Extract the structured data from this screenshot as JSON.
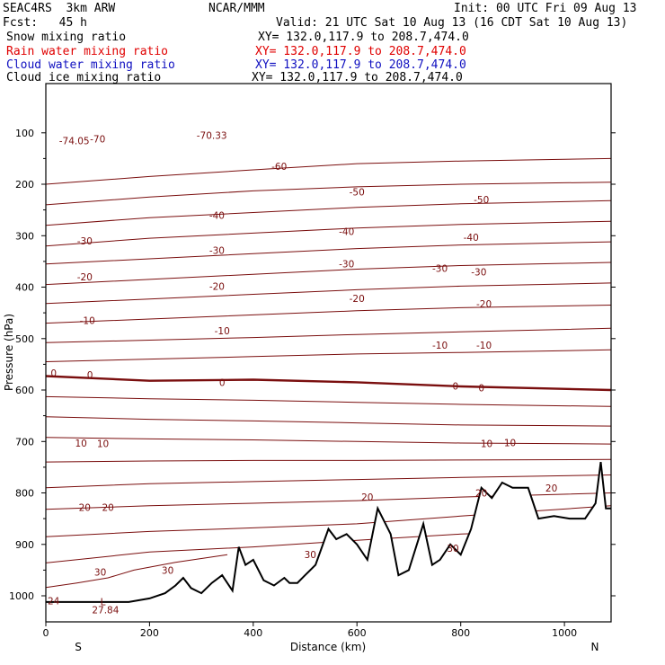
{
  "header": {
    "model": "SEAC4RS  3km ARW",
    "forecast": "Fcst:   45 h",
    "org": "NCAR/MMM",
    "init": "Init: 00 UTC Fri 09 Aug 13",
    "valid": "Valid: 21 UTC Sat 10 Aug 13 (16 CDT Sat 10 Aug 13)"
  },
  "fields": [
    {
      "name": "Snow mixing ratio",
      "xy": "XY= 132.0,117.9 to 208.7,474.0",
      "color": "#000000"
    },
    {
      "name": "Rain water mixing ratio",
      "xy": "XY= 132.0,117.9 to 208.7,474.0",
      "color": "#e00000"
    },
    {
      "name": "Cloud water mixing ratio",
      "xy": "XY= 132.0,117.9 to 208.7,474.0",
      "color": "#1010c0"
    },
    {
      "name": "Cloud ice mixing ratio",
      "xy": "XY= 132.0,117.9 to 208.7,474.0",
      "color": "#000000"
    }
  ],
  "chart_data": {
    "type": "line",
    "xlabel": "Distance (km)",
    "ylabel": "Pressure (hPa)",
    "xlim": [
      0,
      1090
    ],
    "ylim": [
      1050,
      100
    ],
    "x_ticks": [
      0,
      200,
      400,
      600,
      800,
      1000
    ],
    "y_ticks": [
      100,
      200,
      300,
      400,
      500,
      600,
      700,
      800,
      900,
      1000
    ],
    "y_scale": "linear, pressure decreasing upward",
    "x_end_labels": {
      "left": "S",
      "right": "N"
    },
    "contour_color": "#7a0e0e",
    "zero_isotherm_highlighted": true,
    "contours": [
      {
        "x": [
          0,
          200,
          400,
          600,
          800,
          1090
        ],
        "y": [
          200,
          185,
          172,
          160,
          155,
          150
        ]
      },
      {
        "x": [
          0,
          200,
          400,
          600,
          800,
          1090
        ],
        "y": [
          240,
          225,
          213,
          205,
          200,
          196
        ]
      },
      {
        "x": [
          0,
          200,
          400,
          600,
          800,
          1090
        ],
        "y": [
          280,
          265,
          255,
          245,
          238,
          232
        ]
      },
      {
        "x": [
          0,
          200,
          400,
          600,
          800,
          1090
        ],
        "y": [
          320,
          305,
          295,
          285,
          278,
          272
        ]
      },
      {
        "x": [
          0,
          200,
          400,
          600,
          800,
          1090
        ],
        "y": [
          355,
          345,
          335,
          325,
          318,
          312
        ]
      },
      {
        "x": [
          0,
          200,
          400,
          600,
          800,
          1090
        ],
        "y": [
          395,
          385,
          375,
          365,
          358,
          352
        ]
      },
      {
        "x": [
          0,
          200,
          400,
          600,
          800,
          1090
        ],
        "y": [
          432,
          423,
          414,
          405,
          398,
          392
        ]
      },
      {
        "x": [
          0,
          200,
          400,
          600,
          800,
          1090
        ],
        "y": [
          470,
          462,
          454,
          446,
          440,
          435
        ]
      },
      {
        "x": [
          0,
          200,
          400,
          600,
          800,
          1090
        ],
        "y": [
          508,
          503,
          498,
          492,
          487,
          480
        ]
      },
      {
        "x": [
          0,
          200,
          400,
          600,
          800,
          1090
        ],
        "y": [
          545,
          540,
          535,
          530,
          527,
          522
        ]
      },
      {
        "x": [
          0,
          200,
          400,
          600,
          800,
          1090
        ],
        "y": [
          573,
          582,
          580,
          585,
          593,
          600
        ],
        "emphasis": true
      },
      {
        "x": [
          0,
          200,
          400,
          600,
          800,
          1090
        ],
        "y": [
          613,
          617,
          620,
          624,
          628,
          632
        ]
      },
      {
        "x": [
          0,
          200,
          400,
          600,
          800,
          1090
        ],
        "y": [
          652,
          657,
          660,
          664,
          668,
          670
        ]
      },
      {
        "x": [
          0,
          200,
          400,
          600,
          800,
          1090
        ],
        "y": [
          692,
          695,
          697,
          700,
          703,
          705
        ]
      },
      {
        "x": [
          0,
          200,
          400,
          600,
          800,
          1090
        ],
        "y": [
          740,
          738,
          737,
          737,
          736,
          735
        ]
      },
      {
        "x": [
          0,
          200,
          400,
          600,
          800,
          1090
        ],
        "y": [
          790,
          782,
          778,
          774,
          770,
          765
        ]
      },
      {
        "x": [
          0,
          200,
          400,
          600,
          800,
          1090
        ],
        "y": [
          832,
          825,
          820,
          815,
          808,
          800
        ]
      },
      {
        "x": [
          0,
          200,
          400,
          600,
          800,
          1090
        ],
        "y": [
          885,
          875,
          868,
          860,
          845,
          825
        ]
      },
      {
        "x": [
          0,
          200,
          400,
          600,
          800,
          1090
        ],
        "y": [
          936,
          915,
          905,
          892,
          880,
          870
        ]
      },
      {
        "x": [
          0,
          60,
          120,
          170,
          250,
          350
        ],
        "y": [
          984,
          975,
          965,
          950,
          935,
          920
        ]
      }
    ],
    "contour_labels": [
      {
        "x": 55,
        "y": 115,
        "text": "-74.05"
      },
      {
        "x": 100,
        "y": 112,
        "text": "-70"
      },
      {
        "x": 320,
        "y": 105,
        "text": "-70.33"
      },
      {
        "x": 450,
        "y": 165,
        "text": "-60"
      },
      {
        "x": 600,
        "y": 215,
        "text": "-50"
      },
      {
        "x": 840,
        "y": 230,
        "text": "-50"
      },
      {
        "x": 330,
        "y": 260,
        "text": "-40"
      },
      {
        "x": 580,
        "y": 292,
        "text": "-40"
      },
      {
        "x": 820,
        "y": 303,
        "text": "-40"
      },
      {
        "x": 75,
        "y": 310,
        "text": "-30"
      },
      {
        "x": 330,
        "y": 328,
        "text": "-30"
      },
      {
        "x": 580,
        "y": 355,
        "text": "-30"
      },
      {
        "x": 760,
        "y": 363,
        "text": "-30"
      },
      {
        "x": 835,
        "y": 370,
        "text": "-30"
      },
      {
        "x": 75,
        "y": 380,
        "text": "-20"
      },
      {
        "x": 330,
        "y": 398,
        "text": "-20"
      },
      {
        "x": 600,
        "y": 422,
        "text": "-20"
      },
      {
        "x": 845,
        "y": 432,
        "text": "-20"
      },
      {
        "x": 80,
        "y": 465,
        "text": "-10"
      },
      {
        "x": 340,
        "y": 485,
        "text": "-10"
      },
      {
        "x": 760,
        "y": 513,
        "text": "-10"
      },
      {
        "x": 845,
        "y": 513,
        "text": "-10"
      },
      {
        "x": 15,
        "y": 567,
        "text": "0"
      },
      {
        "x": 85,
        "y": 570,
        "text": "0"
      },
      {
        "x": 340,
        "y": 585,
        "text": "0"
      },
      {
        "x": 790,
        "y": 592,
        "text": "0"
      },
      {
        "x": 840,
        "y": 596,
        "text": "0"
      },
      {
        "x": 68,
        "y": 703,
        "text": "10"
      },
      {
        "x": 110,
        "y": 704,
        "text": "10"
      },
      {
        "x": 850,
        "y": 704,
        "text": "10"
      },
      {
        "x": 895,
        "y": 702,
        "text": "10"
      },
      {
        "x": 75,
        "y": 828,
        "text": "20"
      },
      {
        "x": 120,
        "y": 828,
        "text": "20"
      },
      {
        "x": 620,
        "y": 808,
        "text": "20"
      },
      {
        "x": 840,
        "y": 800,
        "text": "20"
      },
      {
        "x": 975,
        "y": 790,
        "text": "20"
      },
      {
        "x": 105,
        "y": 954,
        "text": "30"
      },
      {
        "x": 235,
        "y": 950,
        "text": "30"
      },
      {
        "x": 510,
        "y": 920,
        "text": "30"
      },
      {
        "x": 785,
        "y": 907,
        "text": "30"
      },
      {
        "x": 15,
        "y": 1010,
        "text": "24"
      },
      {
        "x": 110,
        "y": 1011,
        "text": "L"
      },
      {
        "x": 115,
        "y": 1027,
        "text": "27.84"
      }
    ],
    "terrain": {
      "x": [
        0,
        100,
        160,
        200,
        230,
        250,
        265,
        280,
        300,
        320,
        340,
        360,
        372,
        385,
        400,
        420,
        440,
        460,
        470,
        485,
        500,
        520,
        545,
        560,
        580,
        600,
        620,
        640,
        655,
        665,
        680,
        700,
        728,
        745,
        760,
        780,
        800,
        820,
        840,
        860,
        880,
        900,
        930,
        950,
        980,
        1010,
        1040,
        1060,
        1070,
        1080,
        1090
      ],
      "y": [
        1012,
        1012,
        1012,
        1005,
        995,
        980,
        965,
        985,
        995,
        975,
        960,
        990,
        905,
        940,
        930,
        970,
        980,
        965,
        975,
        975,
        960,
        940,
        870,
        890,
        880,
        900,
        930,
        830,
        860,
        880,
        960,
        950,
        860,
        940,
        930,
        900,
        920,
        870,
        790,
        810,
        780,
        790,
        790,
        850,
        845,
        850,
        850,
        820,
        740,
        830,
        830
      ]
    }
  }
}
